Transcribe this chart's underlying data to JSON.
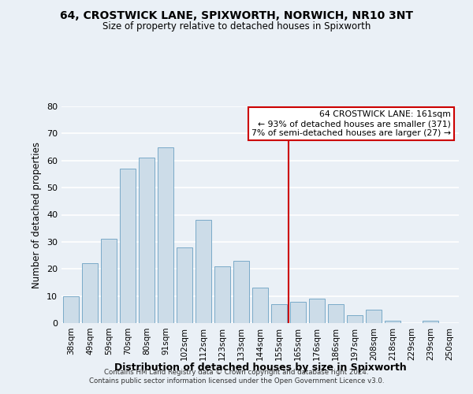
{
  "title": "64, CROSTWICK LANE, SPIXWORTH, NORWICH, NR10 3NT",
  "subtitle": "Size of property relative to detached houses in Spixworth",
  "xlabel": "Distribution of detached houses by size in Spixworth",
  "ylabel": "Number of detached properties",
  "bar_labels": [
    "38sqm",
    "49sqm",
    "59sqm",
    "70sqm",
    "80sqm",
    "91sqm",
    "102sqm",
    "112sqm",
    "123sqm",
    "133sqm",
    "144sqm",
    "155sqm",
    "165sqm",
    "176sqm",
    "186sqm",
    "197sqm",
    "208sqm",
    "218sqm",
    "229sqm",
    "239sqm",
    "250sqm"
  ],
  "bar_values": [
    10,
    22,
    31,
    57,
    61,
    65,
    28,
    38,
    21,
    23,
    13,
    7,
    8,
    9,
    7,
    3,
    5,
    1,
    0,
    1,
    0
  ],
  "bar_color": "#ccdce8",
  "bar_edge_color": "#7aaac8",
  "ref_line_index": 12,
  "reference_line_color": "#cc0000",
  "annotation_title": "64 CROSTWICK LANE: 161sqm",
  "annotation_line1": "← 93% of detached houses are smaller (371)",
  "annotation_line2": "7% of semi-detached houses are larger (27) →",
  "annotation_box_color": "#ffffff",
  "annotation_border_color": "#cc0000",
  "ylim": [
    0,
    80
  ],
  "yticks": [
    0,
    10,
    20,
    30,
    40,
    50,
    60,
    70,
    80
  ],
  "background_color": "#eaf0f6",
  "grid_color": "#ffffff",
  "footer_line1": "Contains HM Land Registry data © Crown copyright and database right 2024.",
  "footer_line2": "Contains public sector information licensed under the Open Government Licence v3.0."
}
